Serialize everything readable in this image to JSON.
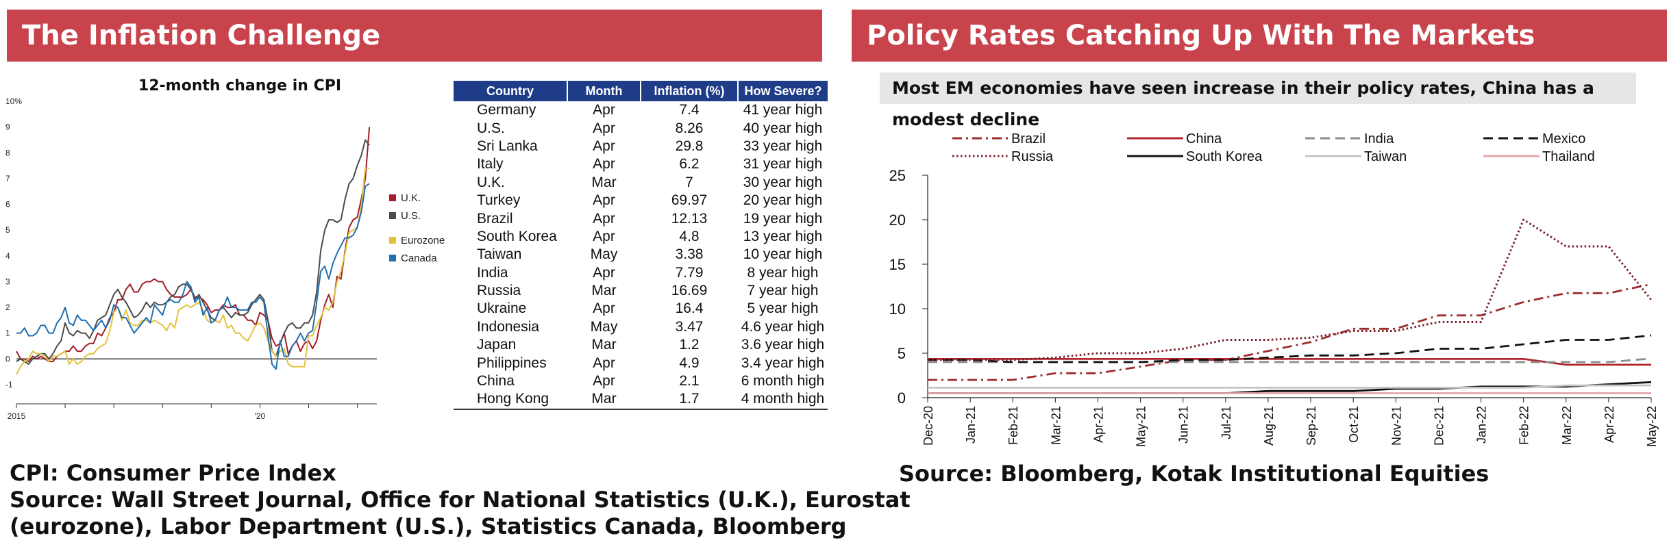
{
  "left_panel": {
    "header": "The Inflation Challenge",
    "footnote": [
      "CPI: Consumer Price Index",
      "Source: Wall Street Journal, Office for National Statistics (U.K.), Eurostat",
      "(eurozone), Labor Department (U.S.), Statistics Canada, Bloomberg"
    ]
  },
  "right_panel": {
    "header": "Policy Rates Catching Up With The Markets",
    "subtitle": "Most EM economies have seen increase in their policy rates, China has a modest decline",
    "source": "Source: Bloomberg, Kotak Institutional Equities"
  },
  "chart_data": [
    {
      "type": "line",
      "title": "12-month change in CPI",
      "x_start": 2015.0,
      "x_step_years": 0.0833,
      "x_ticks": [
        {
          "year": 2015,
          "label": "2015"
        },
        {
          "year": 2020,
          "label": "'20"
        }
      ],
      "ylim": [
        -1,
        10
      ],
      "y_ticks": [
        -1,
        0,
        1,
        2,
        3,
        4,
        5,
        6,
        7,
        8,
        9,
        10
      ],
      "y_tick_labels": [
        "-1",
        "0",
        "1",
        "2",
        "3",
        "4",
        "5",
        "6",
        "7",
        "8",
        "9",
        "10%"
      ],
      "legend_position": "right",
      "series": [
        {
          "name": "U.K.",
          "color": "#a31d2b",
          "values": [
            0.3,
            0.0,
            0.0,
            -0.1,
            0.1,
            0.0,
            0.1,
            0.0,
            -0.1,
            -0.1,
            0.1,
            0.2,
            0.3,
            0.3,
            0.5,
            0.3,
            0.3,
            0.5,
            0.6,
            0.6,
            1.0,
            0.9,
            1.2,
            1.6,
            1.8,
            2.3,
            2.3,
            2.7,
            2.9,
            2.6,
            2.6,
            2.9,
            3.0,
            3.0,
            3.1,
            3.0,
            3.0,
            2.7,
            2.5,
            2.4,
            2.4,
            2.4,
            2.5,
            2.7,
            2.4,
            2.4,
            2.3,
            2.1,
            1.8,
            1.9,
            1.9,
            2.1,
            2.0,
            2.0,
            2.1,
            1.7,
            1.7,
            1.5,
            1.5,
            1.3,
            1.8,
            1.7,
            1.5,
            0.8,
            0.5,
            0.6,
            1.0,
            0.2,
            0.5,
            0.7,
            0.3,
            0.6,
            0.7,
            0.4,
            0.7,
            1.5,
            2.1,
            2.5,
            2.0,
            3.2,
            3.1,
            4.2,
            5.1,
            5.4,
            5.5,
            6.2,
            7.0,
            9.0
          ]
        },
        {
          "name": "U.S.",
          "color": "#4a4a4a",
          "values": [
            -0.1,
            0.0,
            -0.1,
            -0.2,
            0.0,
            0.1,
            0.2,
            0.2,
            0.0,
            0.2,
            0.5,
            0.7,
            1.4,
            1.0,
            0.9,
            1.1,
            1.0,
            1.0,
            0.8,
            1.1,
            1.5,
            1.6,
            1.7,
            2.1,
            2.5,
            2.7,
            2.4,
            2.2,
            1.9,
            1.6,
            1.7,
            1.9,
            2.2,
            2.0,
            2.2,
            2.1,
            2.1,
            2.2,
            2.4,
            2.5,
            2.8,
            2.9,
            2.9,
            2.7,
            2.3,
            2.5,
            2.2,
            1.9,
            1.6,
            1.5,
            1.9,
            2.0,
            1.8,
            1.6,
            1.8,
            1.7,
            1.7,
            1.8,
            2.1,
            2.3,
            2.5,
            2.3,
            1.5,
            0.3,
            0.1,
            0.6,
            1.0,
            1.3,
            1.4,
            1.2,
            1.2,
            1.4,
            1.4,
            1.7,
            2.6,
            4.2,
            5.0,
            5.4,
            5.4,
            5.3,
            5.4,
            6.2,
            6.8,
            7.0,
            7.5,
            7.9,
            8.5,
            8.3
          ]
        },
        {
          "name": "Eurozone",
          "color": "#e4c23c",
          "values": [
            -0.6,
            -0.3,
            -0.1,
            0.0,
            0.3,
            0.2,
            0.2,
            0.1,
            -0.1,
            0.1,
            0.1,
            0.2,
            0.3,
            -0.2,
            0.0,
            -0.2,
            -0.1,
            0.1,
            0.2,
            0.2,
            0.4,
            0.5,
            0.6,
            1.1,
            1.8,
            2.0,
            1.5,
            1.9,
            1.4,
            1.3,
            1.3,
            1.5,
            1.5,
            1.4,
            1.5,
            1.4,
            1.3,
            1.1,
            1.4,
            1.2,
            1.9,
            2.0,
            2.1,
            2.0,
            2.1,
            2.2,
            1.9,
            1.5,
            1.4,
            1.5,
            1.4,
            1.7,
            1.2,
            1.3,
            1.0,
            1.0,
            0.8,
            0.7,
            1.0,
            1.3,
            1.4,
            1.2,
            0.7,
            0.3,
            0.1,
            0.3,
            0.4,
            -0.2,
            -0.3,
            -0.3,
            -0.3,
            -0.3,
            0.9,
            0.9,
            1.3,
            1.6,
            2.0,
            1.9,
            2.2,
            3.0,
            3.4,
            4.1,
            4.9,
            5.0,
            5.1,
            5.9,
            7.4,
            7.4
          ]
        },
        {
          "name": "Canada",
          "color": "#1f6fb2",
          "values": [
            1.0,
            1.0,
            1.2,
            0.9,
            0.9,
            1.0,
            1.3,
            1.3,
            1.0,
            1.0,
            1.4,
            1.6,
            2.0,
            1.4,
            1.3,
            1.7,
            1.5,
            1.5,
            1.3,
            1.1,
            1.3,
            1.5,
            1.2,
            1.5,
            2.1,
            2.0,
            1.6,
            1.6,
            1.3,
            1.0,
            1.2,
            1.4,
            1.6,
            1.4,
            2.1,
            1.9,
            1.7,
            2.2,
            2.3,
            2.2,
            2.2,
            2.5,
            3.0,
            2.8,
            2.2,
            2.4,
            1.7,
            2.0,
            1.4,
            1.5,
            1.9,
            2.0,
            2.4,
            2.0,
            2.0,
            1.9,
            1.9,
            1.9,
            2.2,
            2.2,
            2.4,
            2.2,
            0.9,
            -0.2,
            -0.4,
            0.7,
            0.1,
            0.1,
            0.5,
            0.7,
            1.0,
            0.7,
            1.0,
            1.1,
            2.2,
            3.4,
            3.6,
            3.1,
            3.7,
            4.1,
            4.4,
            4.7,
            4.7,
            4.8,
            5.1,
            5.7,
            6.7,
            6.8
          ]
        }
      ]
    },
    {
      "type": "table",
      "columns": [
        "Country",
        "Month",
        "Inflation (%)",
        "How Severe?"
      ],
      "rows": [
        [
          "Germany",
          "Apr",
          "7.4",
          "41 year high"
        ],
        [
          "U.S.",
          "Apr",
          "8.26",
          "40 year high"
        ],
        [
          "Sri Lanka",
          "Apr",
          "29.8",
          "33 year high"
        ],
        [
          "Italy",
          "Apr",
          "6.2",
          "31 year high"
        ],
        [
          "U.K.",
          "Mar",
          "7",
          "30 year high"
        ],
        [
          "Turkey",
          "Apr",
          "69.97",
          "20 year high"
        ],
        [
          "Brazil",
          "Apr",
          "12.13",
          "19 year high"
        ],
        [
          "South Korea",
          "Apr",
          "4.8",
          "13 year high"
        ],
        [
          "Taiwan",
          "May",
          "3.38",
          "10 year high"
        ],
        [
          "India",
          "Apr",
          "7.79",
          "8 year high"
        ],
        [
          "Russia",
          "Mar",
          "16.69",
          "7 year high"
        ],
        [
          "Ukraine",
          "Apr",
          "16.4",
          "5 year high"
        ],
        [
          "Indonesia",
          "May",
          "3.47",
          "4.6 year high"
        ],
        [
          "Japan",
          "Mar",
          "1.2",
          "3.6 year high"
        ],
        [
          "Philippines",
          "Apr",
          "4.9",
          "3.4 year high"
        ],
        [
          "China",
          "Apr",
          "2.1",
          "6 month high"
        ],
        [
          "Hong Kong",
          "Mar",
          "1.7",
          "4 month high"
        ]
      ]
    },
    {
      "type": "line",
      "categories": [
        "Dec-20",
        "Jan-21",
        "Feb-21",
        "Mar-21",
        "Apr-21",
        "May-21",
        "Jun-21",
        "Jul-21",
        "Aug-21",
        "Sep-21",
        "Oct-21",
        "Nov-21",
        "Dec-21",
        "Jan-22",
        "Feb-22",
        "Mar-22",
        "Apr-22",
        "May-22"
      ],
      "ylim": [
        0,
        25
      ],
      "y_ticks": [
        0,
        5,
        10,
        15,
        20,
        25
      ],
      "legend_position": "top",
      "series": [
        {
          "name": "Brazil",
          "color": "#9c2b2b",
          "dash": "dashdot",
          "values": [
            2.0,
            2.0,
            2.0,
            2.75,
            2.75,
            3.5,
            4.25,
            4.25,
            5.25,
            6.25,
            7.75,
            7.75,
            9.25,
            9.25,
            10.75,
            11.75,
            11.75,
            12.75
          ]
        },
        {
          "name": "China",
          "color": "#b0252d",
          "dash": "solid",
          "values": [
            4.35,
            4.35,
            4.35,
            4.35,
            4.35,
            4.35,
            4.35,
            4.35,
            4.35,
            4.35,
            4.35,
            4.35,
            4.35,
            4.35,
            4.35,
            3.7,
            3.7,
            3.7
          ]
        },
        {
          "name": "India",
          "color": "#8c8c8c",
          "dash": "dashed",
          "values": [
            4.0,
            4.0,
            4.0,
            4.0,
            4.0,
            4.0,
            4.0,
            4.0,
            4.0,
            4.0,
            4.0,
            4.0,
            4.0,
            4.0,
            4.0,
            4.0,
            4.0,
            4.4
          ]
        },
        {
          "name": "Mexico",
          "color": "#111111",
          "dash": "dashed",
          "values": [
            4.25,
            4.25,
            4.0,
            4.0,
            4.0,
            4.0,
            4.25,
            4.25,
            4.5,
            4.75,
            4.75,
            5.0,
            5.5,
            5.5,
            6.0,
            6.5,
            6.5,
            7.0
          ]
        },
        {
          "name": "Russia",
          "color": "#7a1f2a",
          "dash": "dotted",
          "values": [
            4.25,
            4.25,
            4.25,
            4.5,
            5.0,
            5.0,
            5.5,
            6.5,
            6.5,
            6.75,
            7.5,
            7.5,
            8.5,
            8.5,
            20.0,
            17.0,
            17.0,
            11.0
          ]
        },
        {
          "name": "South Korea",
          "color": "#111111",
          "dash": "solid",
          "values": [
            0.5,
            0.5,
            0.5,
            0.5,
            0.5,
            0.5,
            0.5,
            0.5,
            0.75,
            0.75,
            0.75,
            1.0,
            1.0,
            1.25,
            1.25,
            1.25,
            1.5,
            1.75
          ]
        },
        {
          "name": "Taiwan",
          "color": "#c4c4c4",
          "dash": "solid",
          "values": [
            1.125,
            1.125,
            1.125,
            1.125,
            1.125,
            1.125,
            1.125,
            1.125,
            1.125,
            1.125,
            1.125,
            1.125,
            1.125,
            1.125,
            1.125,
            1.375,
            1.375,
            1.375
          ]
        },
        {
          "name": "Thailand",
          "color": "#e2a7ae",
          "dash": "solid",
          "values": [
            0.5,
            0.5,
            0.5,
            0.5,
            0.5,
            0.5,
            0.5,
            0.5,
            0.5,
            0.5,
            0.5,
            0.5,
            0.5,
            0.5,
            0.5,
            0.5,
            0.5,
            0.5
          ]
        }
      ]
    }
  ]
}
